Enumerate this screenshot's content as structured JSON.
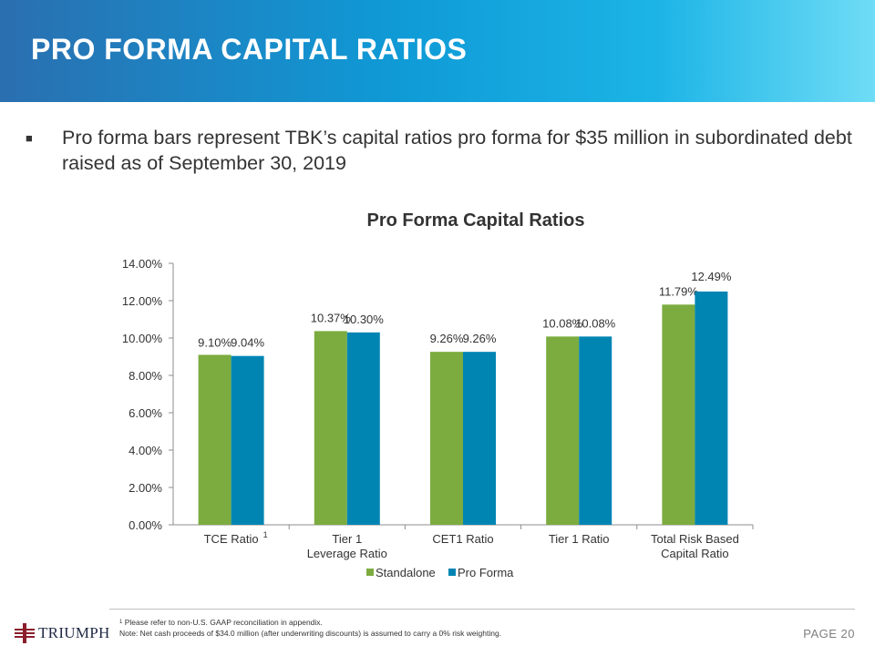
{
  "slide": {
    "title": "PRO FORMA CAPITAL RATIOS",
    "bullet": "Pro forma bars represent TBK’s capital ratios pro forma for $35 million in subordinated debt raised as of September 30, 2019",
    "footnote_superscript": "1",
    "footnote_1": "Please refer to non-U.S. GAAP reconciliation in appendix.",
    "footnote_2": "Note: Net cash proceeds of $34.0 million (after underwriting discounts) is assumed to carry a 0% risk weighting.",
    "logo_text": "TRIUMPH",
    "page_label": "PAGE 20"
  },
  "chart_data": {
    "type": "bar",
    "title": "Pro Forma Capital Ratios",
    "categories": [
      [
        "TCE Ratio"
      ],
      [
        "Tier 1",
        "Leverage Ratio"
      ],
      [
        "CET1 Ratio"
      ],
      [
        "Tier 1 Ratio"
      ],
      [
        "Total Risk Based",
        "Capital Ratio"
      ]
    ],
    "category_superscripts": [
      "1",
      "",
      "",
      "",
      ""
    ],
    "series": [
      {
        "name": "Standalone",
        "values": [
          9.1,
          10.37,
          9.26,
          10.08,
          11.79
        ],
        "labels": [
          "9.10%",
          "10.37%",
          "9.26%",
          "10.08%",
          "11.79%"
        ],
        "color": "#7cac3f"
      },
      {
        "name": "Pro Forma",
        "values": [
          9.04,
          10.3,
          9.26,
          10.08,
          12.49
        ],
        "labels": [
          "9.04%",
          "10.30%",
          "9.26%",
          "10.08%",
          "12.49%"
        ],
        "color": "#0085b3"
      }
    ],
    "ylim": [
      0,
      14
    ],
    "yticks": [
      "0.00%",
      "2.00%",
      "4.00%",
      "6.00%",
      "8.00%",
      "10.00%",
      "12.00%",
      "14.00%"
    ],
    "xlabel": "",
    "ylabel": "",
    "legend": "bottom-center",
    "grid": false
  }
}
